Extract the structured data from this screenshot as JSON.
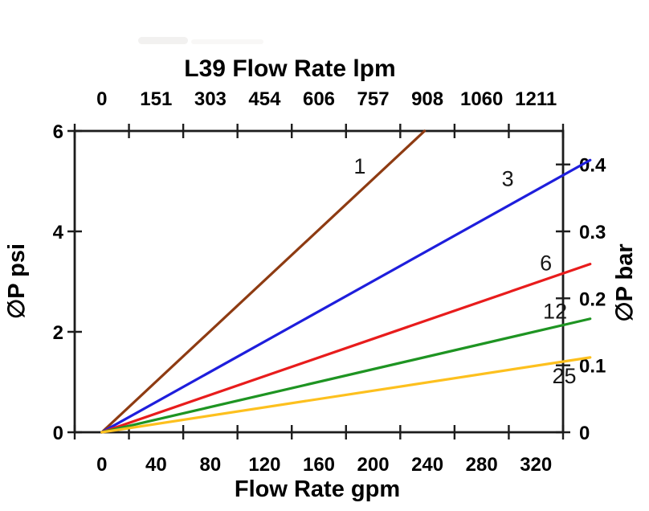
{
  "chart_data": {
    "type": "line",
    "title": "L39 Flow Rate lpm",
    "top_axis": {
      "unit": "lpm",
      "tick_labels": [
        "0",
        "151",
        "303",
        "454",
        "606",
        "757",
        "908",
        "1060",
        "1211"
      ]
    },
    "bottom_axis": {
      "label": "Flow Rate gpm",
      "unit": "gpm",
      "tick_labels": [
        "0",
        "40",
        "80",
        "120",
        "160",
        "200",
        "240",
        "280",
        "320"
      ],
      "tick_values_gpm": [
        0,
        40,
        80,
        120,
        160,
        200,
        240,
        280,
        320
      ],
      "range_gpm": [
        0,
        320
      ]
    },
    "left_axis": {
      "label": "∅P psi",
      "unit": "psi",
      "tick_labels": [
        "0",
        "2",
        "4",
        "6"
      ],
      "tick_values_psi": [
        0,
        2,
        4,
        6
      ],
      "range_psi": [
        0,
        6
      ]
    },
    "right_axis": {
      "label": "∅P bar",
      "unit": "bar",
      "tick_labels": [
        "0",
        "0.1",
        "0.2",
        "0.3",
        "0.4"
      ],
      "tick_values_bar": [
        0,
        0.1,
        0.2,
        0.3,
        0.4
      ],
      "range_bar": [
        0,
        0.45
      ]
    },
    "grid": "off",
    "legend": "inline-curve-labels",
    "series": [
      {
        "name": "1",
        "color": "#8e3b12",
        "points_gpm_psi": [
          [
            0,
            0
          ],
          [
            211.5,
            6.0
          ]
        ],
        "note": "exits top of plot at ~211 gpm",
        "label_at": {
          "gpm": 169,
          "psi": 5.3
        }
      },
      {
        "name": "3",
        "color": "#1e1edc",
        "points_gpm_psi": [
          [
            0,
            0
          ],
          [
            320,
            5.42
          ]
        ],
        "label_at": {
          "gpm": 266,
          "psi": 5.05
        }
      },
      {
        "name": "6",
        "color": "#e81c1c",
        "points_gpm_psi": [
          [
            0,
            0
          ],
          [
            320,
            3.35
          ]
        ],
        "label_at": {
          "gpm": 291,
          "psi": 3.37
        }
      },
      {
        "name": "12",
        "color": "#1e9422",
        "points_gpm_psi": [
          [
            0,
            0
          ],
          [
            320,
            2.26
          ]
        ],
        "label_at": {
          "gpm": 297,
          "psi": 2.41
        }
      },
      {
        "name": "25",
        "color": "#fdc01e",
        "points_gpm_psi": [
          [
            0,
            0
          ],
          [
            320,
            1.49
          ]
        ],
        "label_at": {
          "gpm": 303,
          "psi": 1.12
        }
      }
    ],
    "axis_color": "#1c1c1c"
  }
}
